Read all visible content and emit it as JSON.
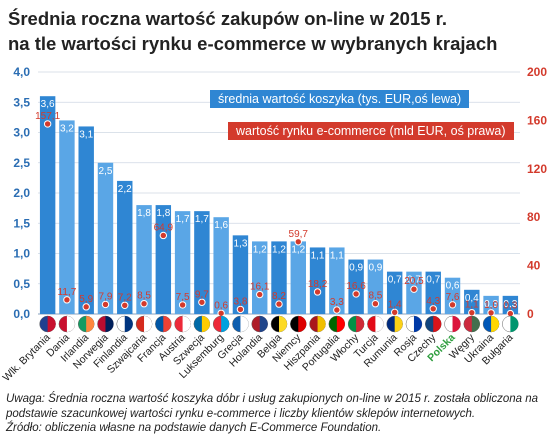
{
  "title_line1": "Średnia roczna wartość zakupów on-line w 2015 r.",
  "title_line2": "na tle wartości rynku e-commerce w wybranych krajach",
  "legend_basket": "średnia wartość koszyka (tys. EUR,oś lewa)",
  "legend_market": "wartość rynku e-commerce (mld EUR, oś prawa)",
  "note_line1": "Uwaga: Średnia roczna wartość koszyka dóbr i usług zakupionych on-line w 2015 r. została obliczona na",
  "note_line2": "podstawie szacunkowej wartości rynku e-commerce i liczby klientów sklepów internetowych.",
  "note_line3": "Źródło: obliczenia własne na podstawie danych E-Commerce Foundation.",
  "colors": {
    "bar": "#2f86d3",
    "bar_light": "#5aa6e6",
    "market_marker": "#d33a2c",
    "left_axis": "#2a6db3",
    "right_axis": "#d33a2c",
    "highlight": "#2f9e3f"
  },
  "chart_data": {
    "type": "bar",
    "categories": [
      "Wlk. Brytania",
      "Dania",
      "Irlandia",
      "Norwegia",
      "Finlandia",
      "Szwajcaria",
      "Francja",
      "Austria",
      "Szwecja",
      "Luksemburg",
      "Grecja",
      "Holandia",
      "Belgia",
      "Niemcy",
      "Hiszpania",
      "Portugalia",
      "Włochy",
      "Turcja",
      "Rumunia",
      "Rosja",
      "Czechy",
      "Polska",
      "Węgry",
      "Ukraina",
      "Bułgaria"
    ],
    "highlight_category": "Polska",
    "series": [
      {
        "name": "średnia wartość koszyka (tys. EUR,oś lewa)",
        "axis": "left",
        "values": [
          3.6,
          3.2,
          3.1,
          2.5,
          2.2,
          1.8,
          1.8,
          1.7,
          1.7,
          1.6,
          1.3,
          1.2,
          1.2,
          1.2,
          1.1,
          1.1,
          0.9,
          0.9,
          0.7,
          0.7,
          0.7,
          0.6,
          0.4,
          0.3,
          0.3
        ]
      },
      {
        "name": "wartość rynku e-commerce (mld EUR, oś prawa)",
        "axis": "right",
        "values": [
          157.1,
          11.7,
          5.9,
          7.9,
          7.2,
          8.5,
          64.9,
          7.5,
          9.7,
          0.6,
          3.8,
          16.1,
          8.2,
          59.7,
          18.2,
          3.3,
          16.6,
          8.5,
          1.4,
          20.5,
          4.3,
          7.6,
          1.1,
          1.0,
          0.3
        ]
      }
    ],
    "left_axis": {
      "min": 0,
      "max": 4.0,
      "ticks": [
        "0,0",
        "0,5",
        "1,0",
        "1,5",
        "2,0",
        "2,5",
        "3,0",
        "3,5",
        "4,0"
      ]
    },
    "right_axis": {
      "min": 0,
      "max": 200,
      "ticks": [
        "0",
        "40",
        "80",
        "120",
        "160",
        "200"
      ]
    }
  }
}
